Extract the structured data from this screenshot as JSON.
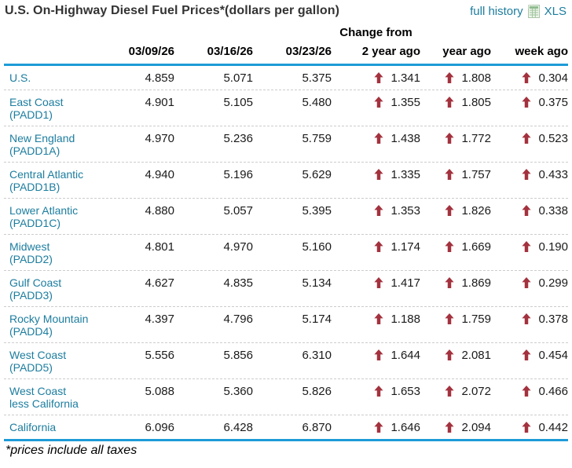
{
  "header": {
    "title": "U.S. On-Highway Diesel Fuel Prices*(dollars per gallon)",
    "full_history_label": "full history",
    "xls_label": "XLS",
    "xls_icon": "spreadsheet-xls-icon"
  },
  "table": {
    "change_from_label": "Change from",
    "date_columns": [
      "03/09/26",
      "03/16/26",
      "03/23/26"
    ],
    "change_columns": [
      "2 year ago",
      "year ago",
      "week ago"
    ]
  },
  "footnote": "*prices include all taxes",
  "colors": {
    "rule_blue": "#1e9bd7",
    "link_teal": "#1c7d9f",
    "arrow_red": "#a3323e",
    "title_gray": "#333333"
  },
  "chart_data": {
    "type": "table",
    "title": "U.S. On-Highway Diesel Fuel Prices* (dollars per gallon)",
    "columns": [
      "Region",
      "03/09/26",
      "03/16/26",
      "03/23/26",
      "Change from 2 year ago",
      "Change from year ago",
      "Change from week ago"
    ],
    "change_arrow": "up",
    "rows": [
      {
        "region": "U.S.",
        "padd": "",
        "prices": [
          4.859,
          5.071,
          5.375
        ],
        "changes": [
          1.341,
          1.808,
          0.304
        ]
      },
      {
        "region": "East Coast",
        "padd": "(PADD1)",
        "prices": [
          4.901,
          5.105,
          5.48
        ],
        "changes": [
          1.355,
          1.805,
          0.375
        ]
      },
      {
        "region": "New England",
        "padd": "(PADD1A)",
        "prices": [
          4.97,
          5.236,
          5.759
        ],
        "changes": [
          1.438,
          1.772,
          0.523
        ]
      },
      {
        "region": "Central Atlantic",
        "padd": "(PADD1B)",
        "prices": [
          4.94,
          5.196,
          5.629
        ],
        "changes": [
          1.335,
          1.757,
          0.433
        ]
      },
      {
        "region": "Lower Atlantic",
        "padd": "(PADD1C)",
        "prices": [
          4.88,
          5.057,
          5.395
        ],
        "changes": [
          1.353,
          1.826,
          0.338
        ]
      },
      {
        "region": "Midwest",
        "padd": "(PADD2)",
        "prices": [
          4.801,
          4.97,
          5.16
        ],
        "changes": [
          1.174,
          1.669,
          0.19
        ]
      },
      {
        "region": "Gulf Coast",
        "padd": "(PADD3)",
        "prices": [
          4.627,
          4.835,
          5.134
        ],
        "changes": [
          1.417,
          1.869,
          0.299
        ]
      },
      {
        "region": "Rocky Mountain",
        "padd": "(PADD4)",
        "prices": [
          4.397,
          4.796,
          5.174
        ],
        "changes": [
          1.188,
          1.759,
          0.378
        ]
      },
      {
        "region": "West Coast",
        "padd": "(PADD5)",
        "prices": [
          5.556,
          5.856,
          6.31
        ],
        "changes": [
          1.644,
          2.081,
          0.454
        ]
      },
      {
        "region": "West Coast",
        "padd": "less California",
        "prices": [
          5.088,
          5.36,
          5.826
        ],
        "changes": [
          1.653,
          2.072,
          0.466
        ]
      },
      {
        "region": "California",
        "padd": "",
        "prices": [
          6.096,
          6.428,
          6.87
        ],
        "changes": [
          1.646,
          2.094,
          0.442
        ]
      }
    ]
  }
}
